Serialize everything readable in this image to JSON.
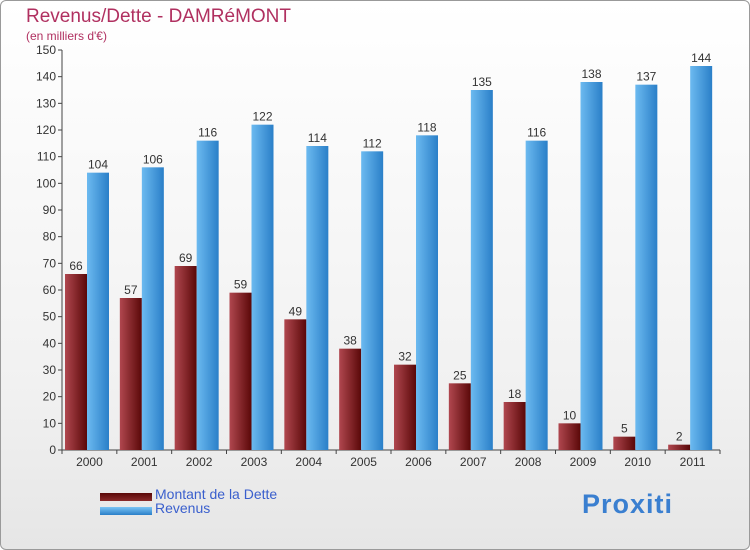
{
  "title": "Revenus/Dette - DAMRéMONT",
  "subtitle": "(en milliers d'€)",
  "chart_data": {
    "type": "bar",
    "categories": [
      "2000",
      "2001",
      "2002",
      "2003",
      "2004",
      "2005",
      "2006",
      "2007",
      "2008",
      "2009",
      "2010",
      "2011"
    ],
    "series": [
      {
        "name": "Montant de la Dette",
        "color": "#7a1a1a",
        "values": [
          66,
          57,
          69,
          59,
          49,
          38,
          32,
          25,
          18,
          10,
          5,
          2
        ]
      },
      {
        "name": "Revenus",
        "color": "#3c9be0",
        "values": [
          104,
          106,
          116,
          122,
          114,
          112,
          118,
          135,
          116,
          138,
          137,
          144
        ]
      }
    ],
    "ylim": [
      0,
      150
    ],
    "yticks": [
      0,
      10,
      20,
      30,
      40,
      50,
      60,
      70,
      80,
      90,
      100,
      110,
      120,
      130,
      140,
      150
    ],
    "grid": false,
    "legend_position": "bottom-left"
  },
  "legend": {
    "debt_label": "Montant de la Dette",
    "revenue_label": "Revenus"
  },
  "logo_text": "Proxiti"
}
